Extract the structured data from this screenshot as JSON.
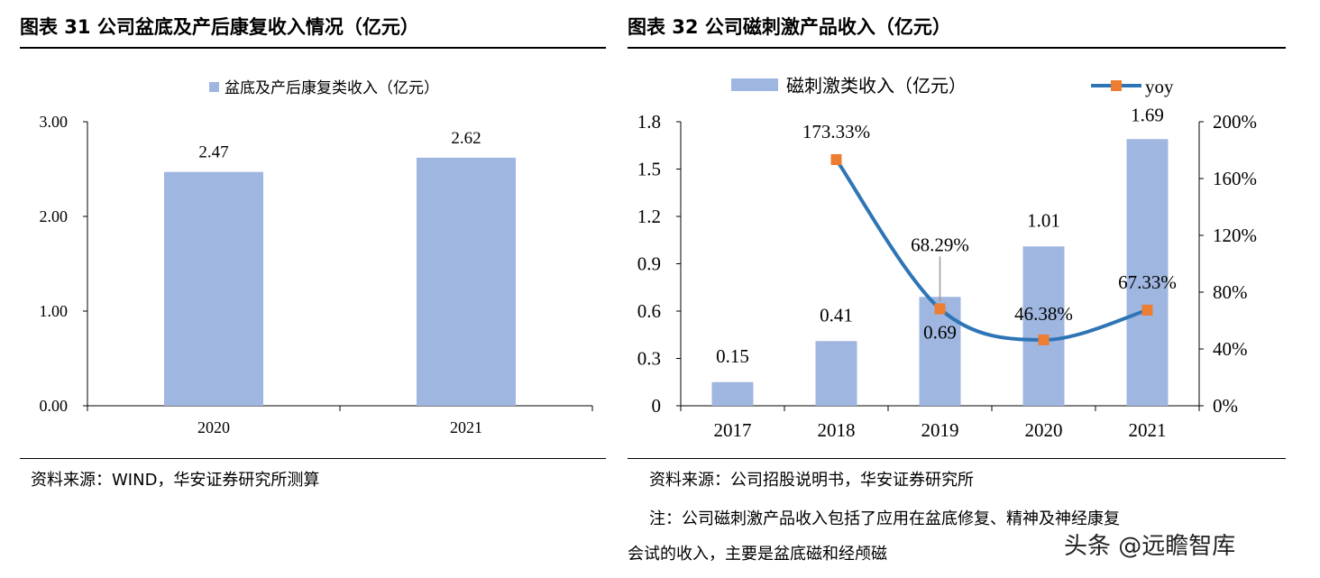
{
  "left": {
    "title": "图表 31 公司盆底及产后康复收入情况（亿元）",
    "source": "资料来源：WIND，华安证券研究所测算"
  },
  "right": {
    "title": "图表 32 公司磁刺激产品收入（亿元）",
    "source": "资料来源：公司招股说明书，华安证券研究所",
    "note_line1": "注：公司磁刺激产品收入包括了应用在盆底修复、精神及神经康复",
    "note_line2": "会试的收入，主要是盆底磁和经颅磁"
  },
  "watermark": "头条 @远瞻智库",
  "colors": {
    "bar": "#9FB6E0",
    "line": "#2E75B6",
    "marker": "#ED7D31"
  },
  "chart_data": [
    {
      "type": "bar",
      "categories": [
        "2020",
        "2021"
      ],
      "series": [
        {
          "name": "盆底及产后康复类收入（亿元）",
          "values": [
            2.47,
            2.62
          ],
          "labels": [
            "2.47",
            "2.62"
          ]
        }
      ],
      "yticks": [
        "0.00",
        "1.00",
        "2.00",
        "3.00"
      ],
      "ylim": [
        0,
        3
      ],
      "legend": "top-center",
      "grid": false
    },
    {
      "type": "bar",
      "categories": [
        "2017",
        "2018",
        "2019",
        "2020",
        "2021"
      ],
      "series": [
        {
          "name": "磁刺激类收入（亿元）",
          "type": "bar",
          "axis": "left",
          "values": [
            0.15,
            0.41,
            0.69,
            1.01,
            1.69
          ],
          "labels": [
            "0.15",
            "0.41",
            "0.69",
            "1.01",
            "1.69"
          ]
        },
        {
          "name": "yoy",
          "type": "line",
          "axis": "right",
          "values": [
            null,
            173.33,
            68.29,
            46.38,
            67.33
          ],
          "labels": [
            "",
            "173.33%",
            "68.29%",
            "46.38%",
            "67.33%"
          ]
        }
      ],
      "yticks_left": [
        "0",
        "0.3",
        "0.6",
        "0.9",
        "1.2",
        "1.5",
        "1.8"
      ],
      "ylim_left": [
        0,
        1.8
      ],
      "yticks_right": [
        "0%",
        "40%",
        "80%",
        "120%",
        "160%",
        "200%"
      ],
      "ylim_right": [
        0,
        200
      ],
      "legend": "top",
      "grid": false
    }
  ]
}
